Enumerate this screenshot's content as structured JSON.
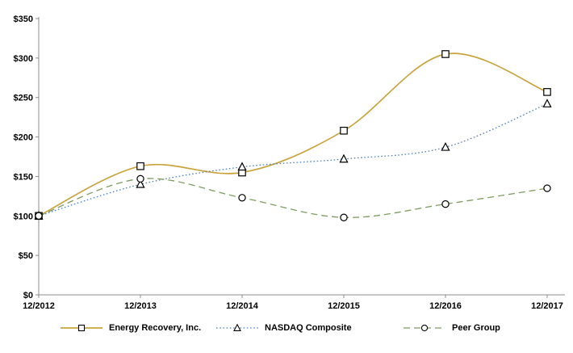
{
  "chart_data": {
    "type": "line",
    "title": "",
    "xlabel": "",
    "ylabel": "",
    "categories": [
      "12/2012",
      "12/2013",
      "12/2014",
      "12/2015",
      "12/2016",
      "12/2017"
    ],
    "y_tick_labels": [
      "$0",
      "$50",
      "$100",
      "$150",
      "$200",
      "$250",
      "$300",
      "$350"
    ],
    "ylim": [
      0,
      350
    ],
    "y_step": 50,
    "grid": false,
    "smoothed_lines": true,
    "legend_position": "bottom",
    "axis_color": "#8c8c8c",
    "label_color": "#000000",
    "marker_stroke_color": "#000000",
    "marker_fill_color": "#ffffff",
    "series": [
      {
        "name": "Energy Recovery, Inc.",
        "values": [
          100,
          163,
          155,
          208,
          305,
          257
        ],
        "color": "#C9A43E",
        "marker": "square",
        "line_style": "solid"
      },
      {
        "name": "NASDAQ Composite",
        "values": [
          100,
          140,
          162,
          172,
          187,
          242
        ],
        "color": "#4F81BD",
        "marker": "triangle",
        "line_style": "dotted"
      },
      {
        "name": "Peer Group",
        "values": [
          100,
          147,
          123,
          98,
          115,
          135
        ],
        "color": "#7D9B62",
        "marker": "circle",
        "line_style": "dashed"
      }
    ]
  }
}
